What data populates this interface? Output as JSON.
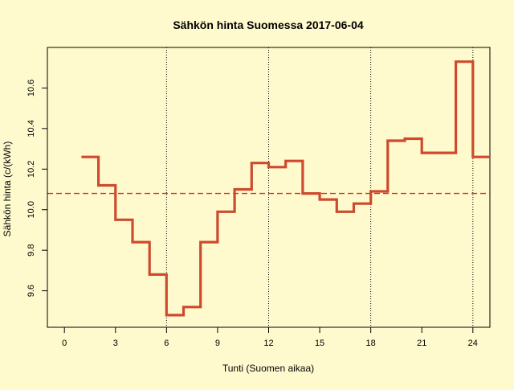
{
  "colors": {
    "background": "#FFFACD",
    "price_line": "#CD4A2E",
    "mean_line": "#D22B2B",
    "axis": "#000000"
  },
  "chart_data": {
    "type": "line",
    "style": "step",
    "title": "Sähkön hinta Suomessa 2017-06-04",
    "xlabel": "Tunti (Suomen aikaa)",
    "ylabel": "Sähkön hinta (c/(kWh)",
    "xlim": [
      -1,
      25
    ],
    "ylim": [
      9.42,
      10.8
    ],
    "x_ticks": [
      0,
      3,
      6,
      9,
      12,
      15,
      18,
      21,
      24
    ],
    "y_ticks": [
      9.6,
      9.8,
      10.0,
      10.2,
      10.4,
      10.6
    ],
    "y_tick_labels": [
      "9.6",
      "9.8",
      "10.0",
      "10.2",
      "10.4",
      "10.6"
    ],
    "vertical_reference_lines_at": [
      6,
      12,
      18,
      24
    ],
    "mean_line_value": 10.08,
    "grid": false,
    "series": [
      {
        "x": [
          1,
          2,
          3,
          4,
          5,
          6,
          7,
          8,
          9,
          10,
          11,
          12,
          13,
          14,
          15,
          16,
          17,
          18,
          19,
          20,
          21,
          22,
          23,
          24
        ],
        "values": [
          10.26,
          10.12,
          9.95,
          9.84,
          9.68,
          9.48,
          9.52,
          9.84,
          9.99,
          10.1,
          10.23,
          10.21,
          10.24,
          10.08,
          10.05,
          9.99,
          10.03,
          10.09,
          10.34,
          10.35,
          10.28,
          10.28,
          10.73,
          10.26
        ]
      }
    ]
  }
}
